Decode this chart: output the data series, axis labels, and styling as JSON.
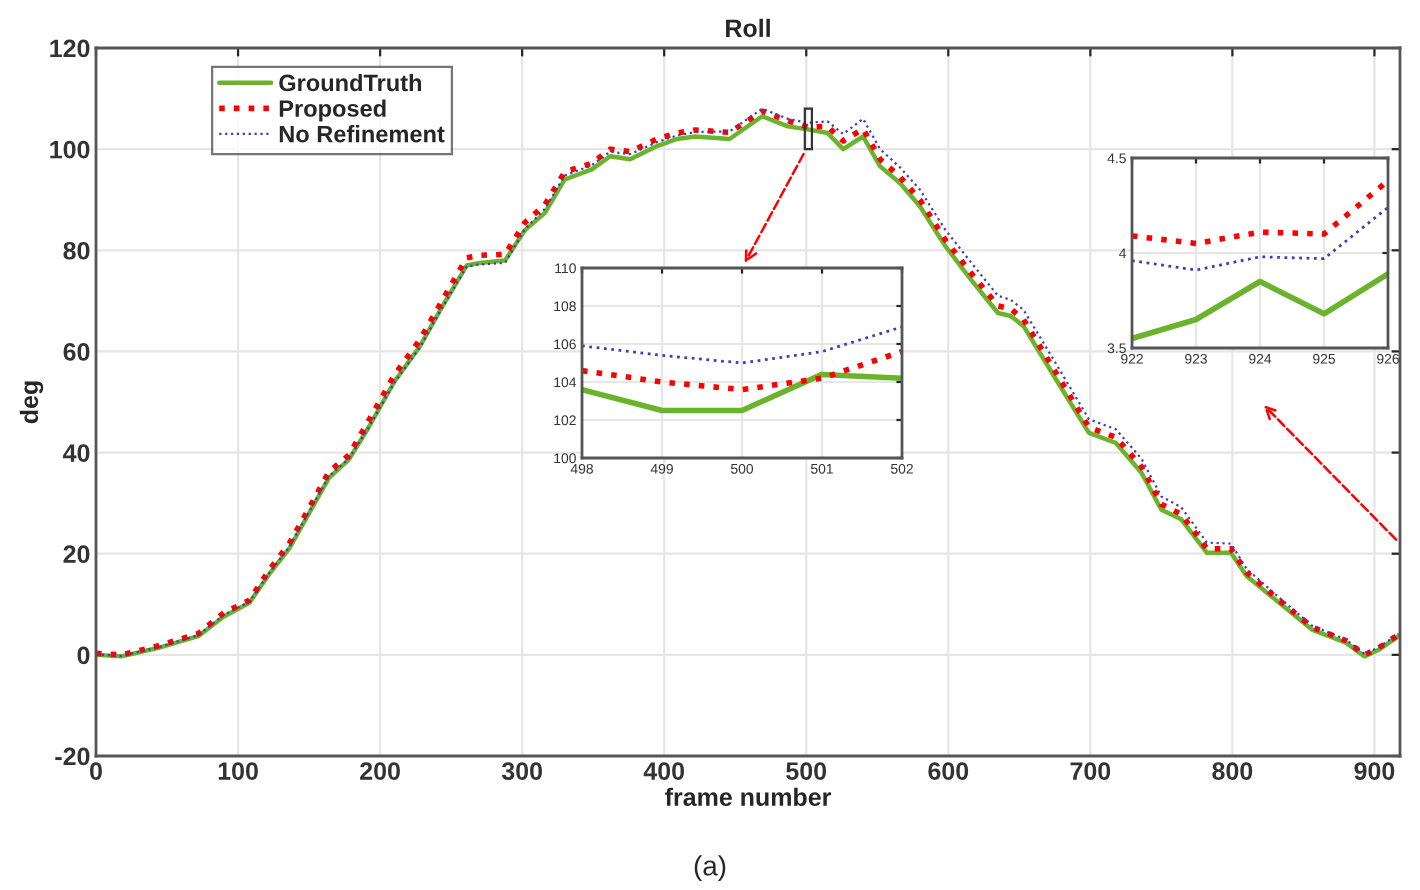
{
  "chart_data": [
    {
      "type": "line",
      "title": "Roll",
      "xlabel": "frame number",
      "ylabel": "deg",
      "xlim": [
        0,
        918
      ],
      "ylim": [
        -20,
        120
      ],
      "xticks": [
        0,
        100,
        200,
        300,
        400,
        500,
        600,
        700,
        800,
        900
      ],
      "yticks": [
        -20,
        0,
        20,
        40,
        60,
        80,
        100,
        120
      ],
      "grid": true,
      "legend": "top left",
      "annotations": [
        "(a)"
      ],
      "series": [
        {
          "name": "GroundTruth",
          "color": "#6ab42d",
          "line_style": "solid",
          "x": [
            0,
            18,
            44,
            72,
            90,
            108,
            122,
            136,
            150,
            164,
            178,
            192,
            210,
            228,
            242,
            261,
            270,
            288,
            302,
            316,
            330,
            349,
            362,
            376,
            395,
            409,
            422,
            446,
            469,
            487,
            501,
            515,
            526,
            540,
            552,
            566,
            580,
            598,
            616,
            635,
            644,
            653,
            676,
            699,
            718,
            736,
            750,
            764,
            782,
            799,
            810,
            833,
            856,
            880,
            893,
            903,
            917
          ],
          "values": [
            0,
            -0.3,
            1.4,
            3.7,
            7.6,
            10.3,
            16,
            21,
            28,
            35,
            38.6,
            45,
            54,
            61,
            68,
            77,
            77.5,
            78,
            84,
            87.4,
            94,
            96,
            98.6,
            98,
            100.6,
            102,
            102.5,
            102,
            106.5,
            104.5,
            103.9,
            103.2,
            100,
            102.5,
            96.6,
            93.3,
            88.7,
            80.8,
            74.2,
            67.6,
            67,
            65,
            54.4,
            43.9,
            41.9,
            36,
            28.7,
            26.8,
            20.2,
            20.2,
            15.6,
            10.3,
            5,
            2.4,
            -0.3,
            1,
            3.7
          ]
        },
        {
          "name": "Proposed",
          "color": "#ff0000",
          "line_style": "dotted",
          "x": [
            0,
            18,
            44,
            72,
            90,
            108,
            122,
            136,
            150,
            164,
            178,
            192,
            210,
            228,
            242,
            261,
            270,
            288,
            302,
            316,
            330,
            349,
            362,
            376,
            395,
            409,
            422,
            446,
            469,
            487,
            501,
            515,
            526,
            540,
            552,
            566,
            580,
            598,
            616,
            635,
            644,
            653,
            676,
            699,
            718,
            736,
            750,
            764,
            782,
            799,
            810,
            833,
            856,
            880,
            893,
            903,
            917
          ],
          "values": [
            0.3,
            0,
            1.8,
            4.2,
            8.3,
            10.8,
            16.8,
            22,
            29,
            36.2,
            39.5,
            46.3,
            55.3,
            62.3,
            69.2,
            78.5,
            79,
            79.2,
            85.5,
            89,
            95.5,
            97.2,
            100,
            99.5,
            102,
            103.2,
            103.8,
            103.3,
            107.5,
            105.6,
            104.4,
            104.5,
            101.6,
            104,
            98,
            94.5,
            90,
            82,
            75.5,
            69,
            68.4,
            66.3,
            55.7,
            45,
            43,
            37.2,
            29.8,
            27.8,
            21,
            21,
            16.3,
            10.8,
            5.5,
            2.8,
            0,
            1.4,
            4
          ]
        },
        {
          "name": "No Refinement",
          "color": "#3d3db8",
          "line_style": "dotted",
          "x": [
            0,
            18,
            44,
            72,
            90,
            108,
            122,
            136,
            150,
            164,
            178,
            192,
            210,
            228,
            242,
            261,
            270,
            288,
            302,
            316,
            330,
            349,
            362,
            376,
            395,
            409,
            422,
            446,
            469,
            487,
            501,
            515,
            526,
            540,
            552,
            566,
            580,
            598,
            616,
            635,
            644,
            653,
            676,
            699,
            718,
            736,
            750,
            764,
            782,
            799,
            810,
            833,
            856,
            880,
            893,
            903,
            917
          ],
          "values": [
            0.1,
            -0.2,
            1.5,
            3.9,
            7.9,
            10.5,
            16.2,
            21.3,
            28.3,
            35.3,
            38.8,
            45,
            53.8,
            60.8,
            67.8,
            76.8,
            77.2,
            77.5,
            84.2,
            88.2,
            94.8,
            96.8,
            99.5,
            99,
            101.4,
            102.7,
            103.4,
            103.5,
            108,
            106,
            105.2,
            105.5,
            103,
            106,
            100,
            96.4,
            92,
            84,
            77.6,
            71,
            70.2,
            68.2,
            57.5,
            46.6,
            44.6,
            38.8,
            31.3,
            29.2,
            22.2,
            22,
            17,
            11.3,
            5.8,
            3,
            0.2,
            1.5,
            4.2
          ]
        }
      ]
    },
    {
      "type": "line",
      "xlim": [
        498,
        502
      ],
      "ylim": [
        100,
        110
      ],
      "xticks": [
        498,
        499,
        500,
        501,
        502
      ],
      "yticks": [
        100,
        102,
        104,
        106,
        108,
        110
      ],
      "grid": true,
      "series": [
        {
          "color": "#6ab42d",
          "line_style": "solid",
          "x": [
            498,
            499,
            500,
            501,
            502
          ],
          "values": [
            103.6,
            102.5,
            102.5,
            104.4,
            104.2
          ]
        },
        {
          "color": "#ff0000",
          "line_style": "dotted",
          "x": [
            498,
            499,
            500,
            501,
            502
          ],
          "values": [
            104.6,
            104.0,
            103.6,
            104.2,
            105.6
          ]
        },
        {
          "color": "#3d3db8",
          "line_style": "dotted",
          "x": [
            498,
            499,
            500,
            501,
            502
          ],
          "values": [
            105.9,
            105.4,
            105.0,
            105.6,
            106.9
          ]
        }
      ]
    },
    {
      "type": "line",
      "xlim": [
        922,
        926
      ],
      "ylim": [
        3.5,
        4.5
      ],
      "xticks": [
        922,
        923,
        924,
        925,
        926
      ],
      "yticks": [
        3.5,
        4,
        4.5
      ],
      "grid": true,
      "series": [
        {
          "color": "#6ab42d",
          "line_style": "solid",
          "x": [
            922,
            923,
            924,
            925,
            926
          ],
          "values": [
            3.55,
            3.65,
            3.85,
            3.68,
            3.89
          ]
        },
        {
          "color": "#ff0000",
          "line_style": "dotted",
          "x": [
            922,
            923,
            924,
            925,
            926
          ],
          "values": [
            4.09,
            4.05,
            4.11,
            4.1,
            4.38
          ]
        },
        {
          "color": "#3d3db8",
          "line_style": "dotted",
          "x": [
            922,
            923,
            924,
            925,
            926
          ],
          "values": [
            3.96,
            3.91,
            3.98,
            3.97,
            4.24
          ]
        }
      ]
    }
  ]
}
